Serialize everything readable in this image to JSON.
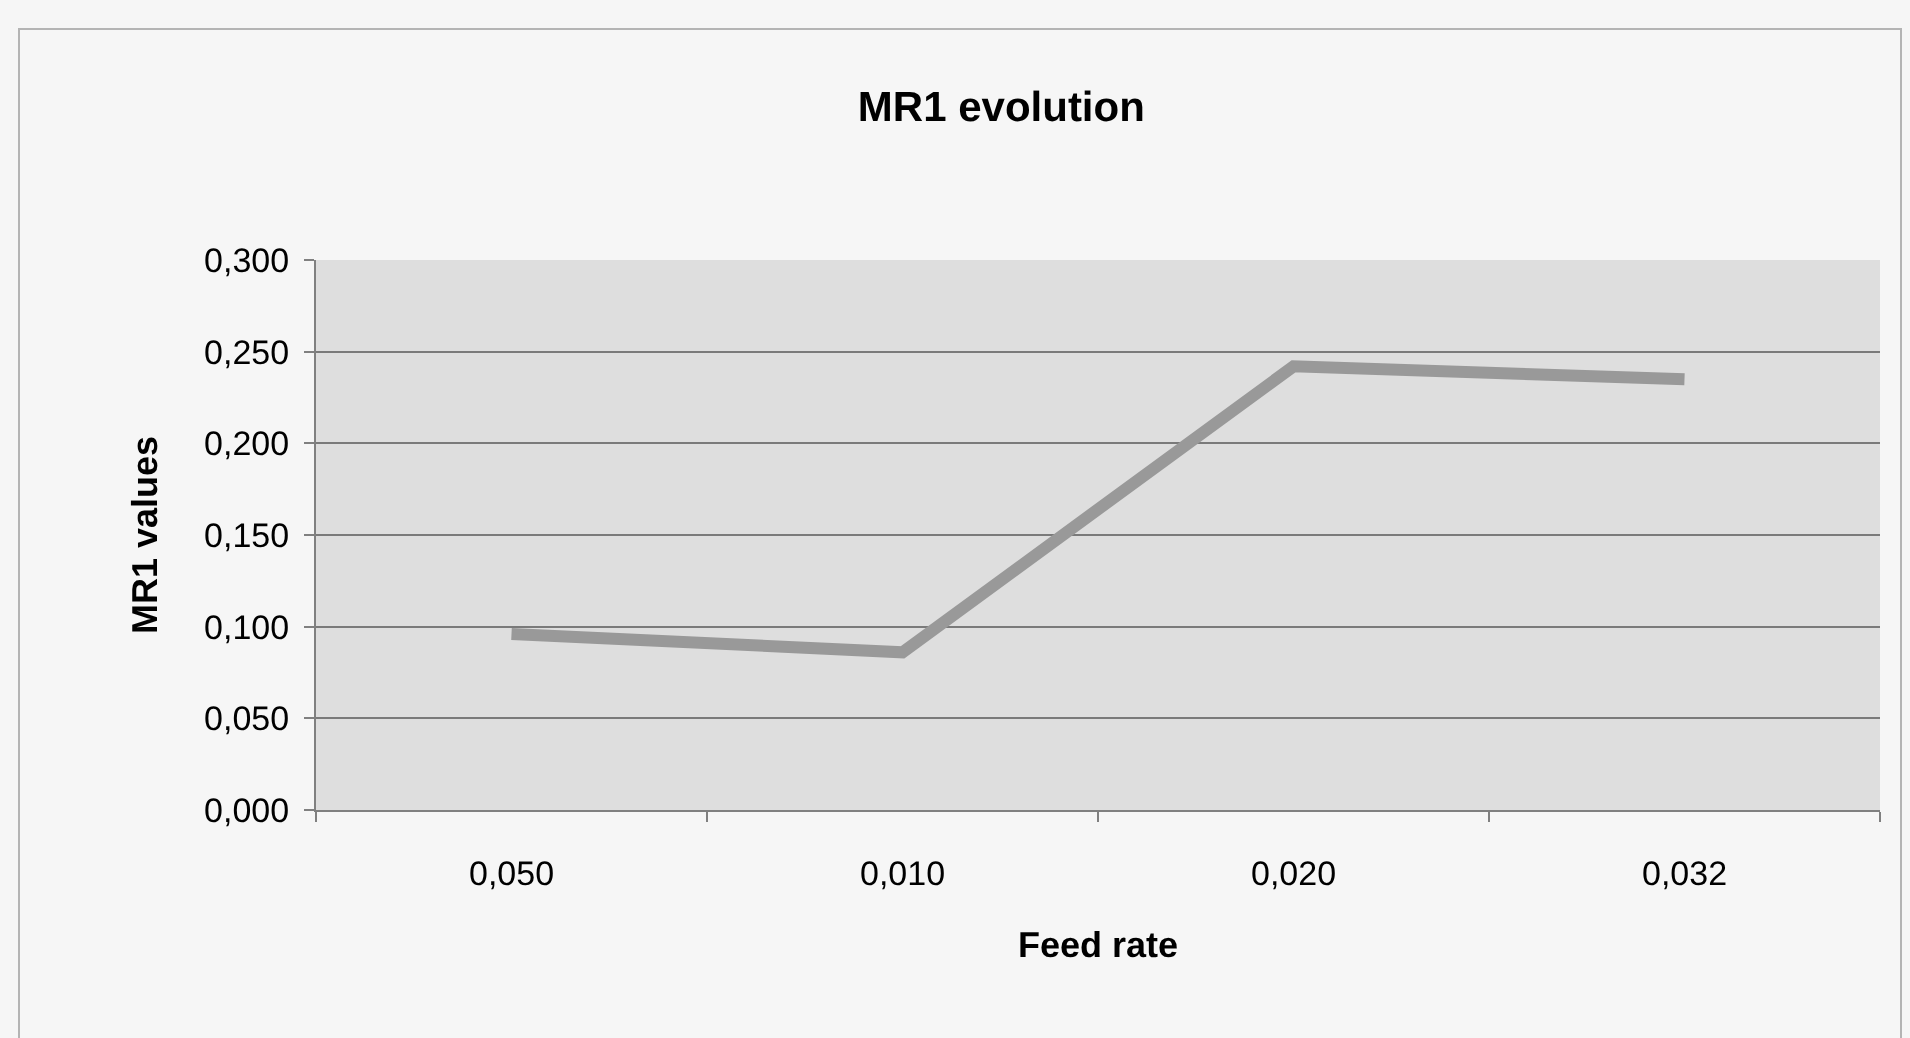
{
  "chart_data": {
    "type": "line",
    "title": "MR1 evolution",
    "xlabel": "Feed rate",
    "ylabel": "MR1 values",
    "categories": [
      "0,050",
      "0,010",
      "0,020",
      "0,032"
    ],
    "series": [
      {
        "color": "#999999",
        "values": [
          0.096,
          0.086,
          0.242,
          0.235
        ]
      }
    ],
    "ylim": [
      0,
      0.3
    ],
    "yticks": [
      {
        "value": 0,
        "label": "0,000"
      },
      {
        "value": 0.05,
        "label": "0,050"
      },
      {
        "value": 0.1,
        "label": "0,100"
      },
      {
        "value": 0.15,
        "label": "0,150"
      },
      {
        "value": 0.2,
        "label": "0,200"
      },
      {
        "value": 0.25,
        "label": "0,250"
      },
      {
        "value": 0.3,
        "label": "0,300"
      }
    ],
    "grid": "y",
    "marker": "none",
    "line_style": "solid"
  }
}
